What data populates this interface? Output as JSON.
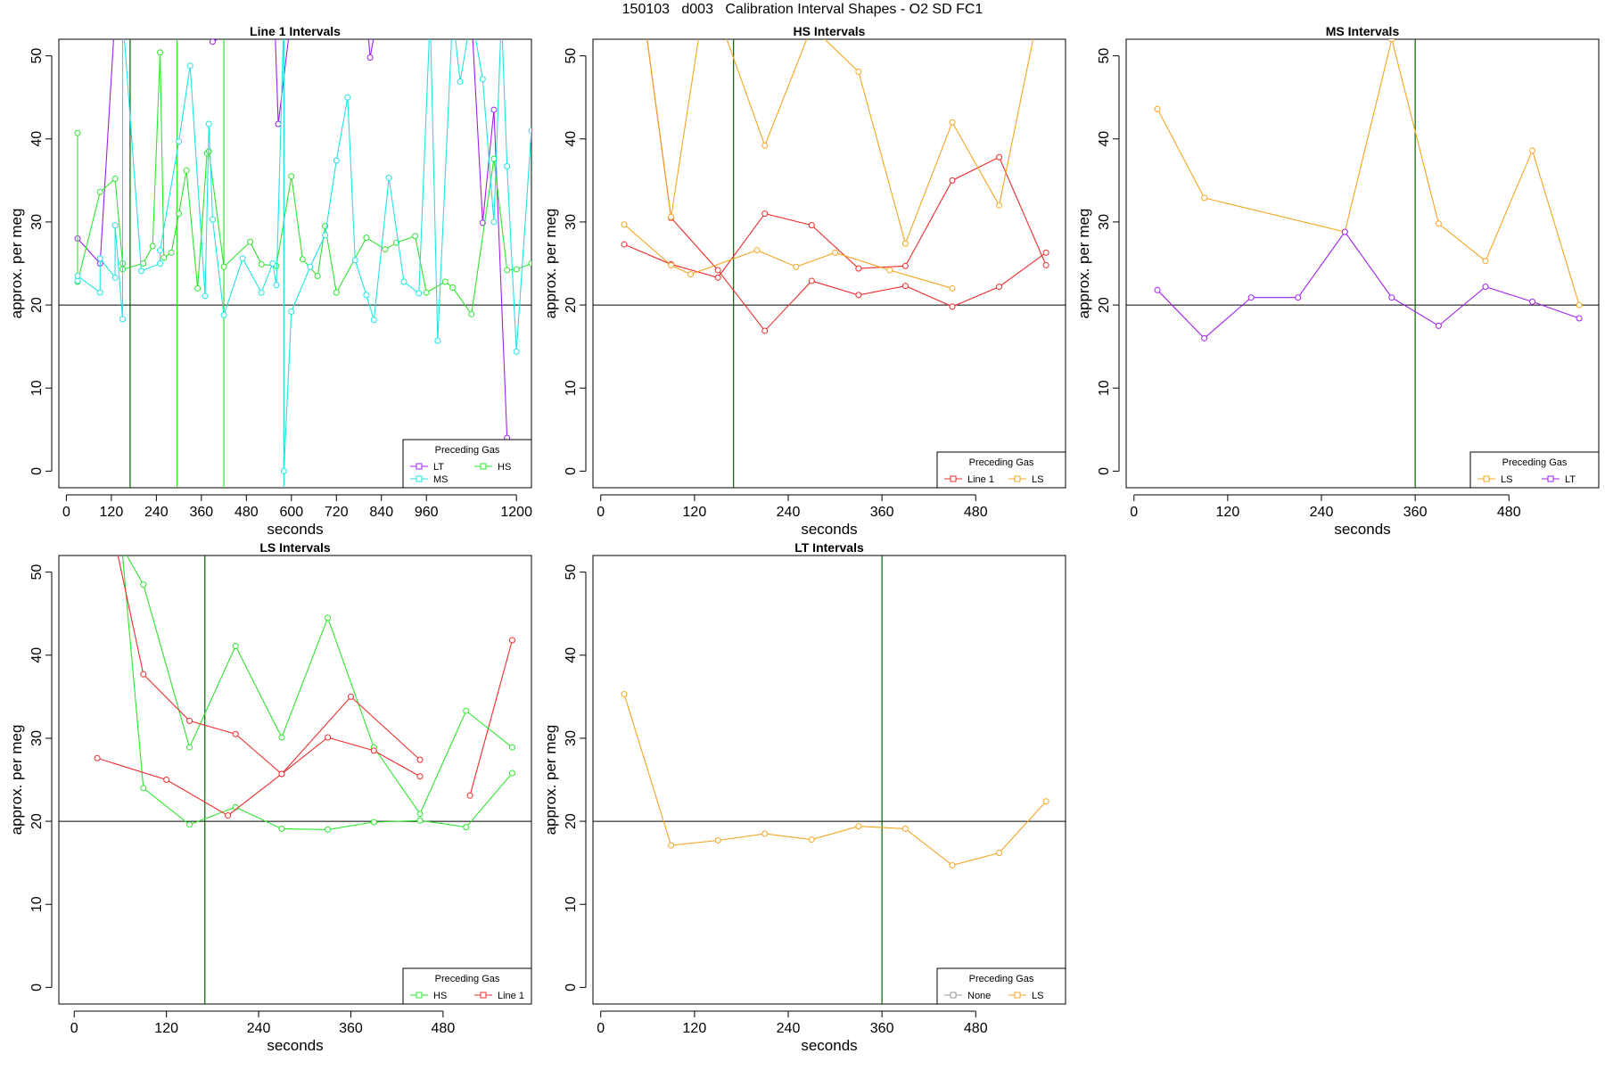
{
  "main_title": "150103   d003   Calibration Interval Shapes - O2 SD FC1",
  "colors": {
    "Line 1": "#ee2c2c",
    "HS": "#2ee62e",
    "MS": "#22e3e3",
    "LS": "#f5a623",
    "LT": "#a020f0",
    "None": "#999999",
    "ref_line": "#000000",
    "marker_line": "#006400"
  },
  "chart_data": [
    {
      "type": "line",
      "title": "Line 1 Intervals",
      "xlabel": "seconds",
      "ylabel": "approx. per meg",
      "xlim": [
        -20,
        1240
      ],
      "ylim": [
        -2,
        52
      ],
      "xticks": [
        0,
        120,
        240,
        360,
        480,
        600,
        720,
        840,
        960,
        1200
      ],
      "yticks": [
        0,
        10,
        20,
        30,
        40,
        50
      ],
      "hline": 20,
      "grid": false,
      "legend_placement": "bottom-right",
      "legend_title": "Preceding Gas",
      "legend_entries": [
        "LT",
        "HS",
        "MS"
      ],
      "vlines": [
        {
          "x": 170,
          "color_key": "marker_line"
        },
        {
          "x": 295,
          "color_key": "HS"
        },
        {
          "x": 420,
          "color_key": "HS"
        },
        {
          "x": 580,
          "color_key": "MS"
        }
      ],
      "series": [
        {
          "name": "LT",
          "x": [
            30,
            90,
            130,
            360,
            390,
            540,
            555,
            565,
            600,
            800,
            810,
            830,
            1080,
            1110,
            1140,
            1175
          ],
          "y": [
            28,
            25,
            55,
            55,
            51.7,
            55,
            55,
            41.8,
            55,
            55,
            49.8,
            55,
            55,
            29.9,
            43.5,
            4
          ]
        },
        {
          "name": "HS",
          "x": [
            30,
            30,
            90,
            130,
            150,
            150,
            205,
            230,
            250,
            260,
            280,
            300,
            320,
            350,
            375,
            380,
            420,
            490,
            520,
            560,
            600,
            630,
            670,
            690,
            720,
            800,
            850,
            880,
            930,
            960,
            1010,
            1030,
            1080,
            1140,
            1175,
            1200,
            1240
          ],
          "y": [
            40.7,
            22.8,
            33.6,
            35.2,
            25,
            24.3,
            25,
            27.1,
            50.4,
            25.7,
            26.3,
            31,
            36.2,
            22,
            38.3,
            38.5,
            24.6,
            27.6,
            24.9,
            24.7,
            35.5,
            25.5,
            23.5,
            29.5,
            21.5,
            28.1,
            26.7,
            27.5,
            28.3,
            21.5,
            22.8,
            22.1,
            18.9,
            37.6,
            24.2,
            24.3,
            25
          ]
        },
        {
          "name": "MS",
          "x": [
            30,
            30,
            90,
            90,
            130,
            130,
            150,
            150,
            200,
            250,
            250,
            300,
            330,
            370,
            380,
            390,
            420,
            470,
            520,
            550,
            560,
            580,
            580,
            600,
            650,
            690,
            720,
            750,
            770,
            800,
            820,
            860,
            900,
            940,
            970,
            990,
            1030,
            1050,
            1080,
            1110,
            1140,
            1160,
            1175,
            1200,
            1240
          ],
          "y": [
            22.9,
            23.5,
            21.5,
            25.6,
            23.3,
            29.6,
            18.3,
            55,
            24.1,
            25,
            26.6,
            39.7,
            48.8,
            21.1,
            41.8,
            30.3,
            18.8,
            25.6,
            21.5,
            25,
            22.4,
            55,
            0,
            19.2,
            24.6,
            28.4,
            37.4,
            45,
            25.4,
            21.2,
            18.2,
            35.3,
            22.8,
            21.4,
            55,
            15.7,
            55,
            46.9,
            55,
            47.2,
            30,
            55,
            36.7,
            14.4,
            41
          ]
        }
      ]
    },
    {
      "type": "line",
      "title": "HS Intervals",
      "xlabel": "seconds",
      "ylabel": "approx. per meg",
      "xlim": [
        -10,
        595
      ],
      "ylim": [
        -2,
        52
      ],
      "xticks": [
        0,
        120,
        240,
        360,
        480
      ],
      "yticks": [
        0,
        10,
        20,
        30,
        40,
        50
      ],
      "hline": 20,
      "grid": false,
      "legend_placement": "bottom-right",
      "legend_title": "Preceding Gas",
      "legend_entries": [
        "Line 1",
        "LS"
      ],
      "vlines": [
        {
          "x": 170,
          "color_key": "marker_line"
        }
      ],
      "series": [
        {
          "name": "Line 1",
          "x": [
            30,
            90,
            150,
            210,
            270,
            330,
            390,
            450,
            510,
            570
          ],
          "y": [
            27.3,
            24.9,
            23.3,
            31,
            29.6,
            24.4,
            24.7,
            35,
            37.8,
            24.8
          ]
        },
        {
          "name": "Line 1",
          "x": [
            55,
            90,
            150,
            210,
            270,
            330,
            390,
            450,
            510,
            570
          ],
          "y": [
            55,
            30.5,
            24.2,
            16.9,
            22.9,
            21.2,
            22.3,
            19.8,
            22.2,
            26.3
          ]
        },
        {
          "name": "LS",
          "x": [
            30,
            90,
            115,
            200,
            250,
            300,
            370,
            450
          ],
          "y": [
            29.7,
            24.8,
            23.7,
            26.6,
            24.6,
            26.3,
            24.2,
            22
          ]
        },
        {
          "name": "LS",
          "x": [
            55,
            90,
            130,
            150,
            210,
            270,
            330,
            390,
            450,
            510,
            560
          ],
          "y": [
            55,
            30.6,
            55,
            55,
            39.2,
            53.5,
            48.1,
            27.4,
            42,
            32,
            55
          ]
        }
      ]
    },
    {
      "type": "line",
      "title": "MS Intervals",
      "xlabel": "seconds",
      "ylabel": "approx. per meg",
      "xlim": [
        -10,
        595
      ],
      "ylim": [
        -2,
        52
      ],
      "xticks": [
        0,
        120,
        240,
        360,
        480
      ],
      "yticks": [
        0,
        10,
        20,
        30,
        40,
        50
      ],
      "hline": 20,
      "grid": false,
      "legend_placement": "bottom-right",
      "legend_title": "Preceding Gas",
      "legend_entries": [
        "LS",
        "LT"
      ],
      "vlines": [
        {
          "x": 360,
          "color_key": "marker_line"
        }
      ],
      "series": [
        {
          "name": "LS",
          "x": [
            30,
            90,
            270,
            330,
            390,
            450,
            510,
            570
          ],
          "y": [
            43.6,
            32.9,
            28.8,
            52,
            29.8,
            25.3,
            38.6,
            20
          ]
        },
        {
          "name": "LT",
          "x": [
            30,
            90,
            150,
            210,
            270,
            330,
            390,
            450,
            510,
            570
          ],
          "y": [
            21.8,
            16,
            20.9,
            20.9,
            28.8,
            20.9,
            17.5,
            22.2,
            20.4,
            18.4
          ]
        }
      ]
    },
    {
      "type": "line",
      "title": "LS Intervals",
      "xlabel": "seconds",
      "ylabel": "approx. per meg",
      "xlim": [
        -20,
        595
      ],
      "ylim": [
        -2,
        52
      ],
      "xticks": [
        0,
        120,
        240,
        360,
        480
      ],
      "yticks": [
        0,
        10,
        20,
        30,
        40,
        50
      ],
      "hline": 20,
      "grid": false,
      "legend_placement": "bottom-right",
      "legend_title": "Preceding Gas",
      "legend_entries": [
        "HS",
        "Line 1"
      ],
      "vlines": [
        {
          "x": 170,
          "color_key": "marker_line"
        }
      ],
      "series": [
        {
          "name": "HS",
          "x": [
            50,
            90,
            150,
            210,
            270,
            330,
            390,
            450,
            510,
            570
          ],
          "y": [
            55,
            48.5,
            28.9,
            41.1,
            30.1,
            44.5,
            28.9,
            20.9,
            33.3,
            28.9
          ]
        },
        {
          "name": "HS",
          "x": [
            60,
            90,
            150,
            210,
            270,
            330,
            390,
            450,
            510,
            570
          ],
          "y": [
            55,
            24,
            19.6,
            21.7,
            19.1,
            19,
            19.9,
            20.1,
            19.3,
            25.8
          ]
        },
        {
          "name": "Line 1",
          "x": [
            30,
            120,
            200,
            270,
            330,
            390,
            450
          ],
          "y": [
            27.6,
            25,
            20.7,
            25.7,
            30.1,
            28.5,
            25.4
          ]
        },
        {
          "name": "Line 1",
          "x": [
            50,
            90,
            150,
            210,
            270,
            360,
            450
          ],
          "y": [
            55,
            37.7,
            32.1,
            30.5,
            25.7,
            35,
            27.4
          ]
        },
        {
          "name": "Line 1",
          "x": [
            515,
            570
          ],
          "y": [
            23.1,
            41.8
          ]
        }
      ]
    },
    {
      "type": "line",
      "title": "LT Intervals",
      "xlabel": "seconds",
      "ylabel": "approx. per meg",
      "xlim": [
        -10,
        595
      ],
      "ylim": [
        -2,
        52
      ],
      "xticks": [
        0,
        120,
        240,
        360,
        480
      ],
      "yticks": [
        0,
        10,
        20,
        30,
        40,
        50
      ],
      "hline": 20,
      "grid": false,
      "legend_placement": "bottom-right",
      "legend_title": "Preceding Gas",
      "legend_entries": [
        "None",
        "LS"
      ],
      "vlines": [
        {
          "x": 360,
          "color_key": "marker_line"
        }
      ],
      "series": [
        {
          "name": "LS",
          "x": [
            30,
            90,
            150,
            210,
            270,
            330,
            390,
            450,
            510,
            570
          ],
          "y": [
            35.3,
            17.1,
            17.7,
            18.5,
            17.8,
            19.4,
            19.1,
            14.7,
            16.2,
            22.4
          ]
        }
      ]
    }
  ]
}
